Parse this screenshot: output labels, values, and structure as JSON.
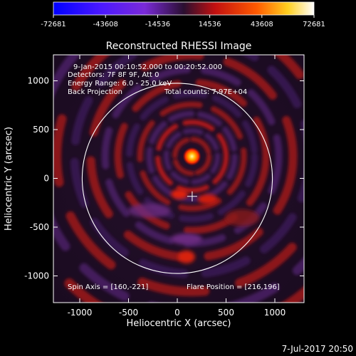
{
  "chart_data": {
    "type": "heatmap",
    "title": "Reconstructed RHESSI Image",
    "xlabel": "Heliocentric X (arcsec)",
    "ylabel": "Heliocentric Y (arcsec)",
    "xlim": [
      -1300,
      1300
    ],
    "ylim": [
      -1300,
      1300
    ],
    "x_ticks": [
      -1000,
      -500,
      0,
      500,
      1000
    ],
    "y_ticks": [
      -1000,
      -500,
      0,
      500,
      1000
    ],
    "colorbar": {
      "min": -72681,
      "max": 72681,
      "tick_labels": [
        "-72681",
        "-43608",
        "-14536",
        "14536",
        "43608",
        "72681"
      ],
      "tick_values": [
        -72681,
        -43608,
        -14536,
        14536,
        43608,
        72681
      ]
    },
    "annotations": [
      "9-Jan-2015 00:10:52.000 to 00:20:52.000",
      "Detectors: 7F 8F 9F, Att 0",
      "Energy Range: 6.0 - 25.0 keV",
      "Back Projection",
      "Total counts: 7.97E+04"
    ],
    "spin_axis_label": "Spin Axis = [160,-221]",
    "flare_position_label": "Flare Position = [216,196]",
    "spin_axis": [
      160,
      -221
    ],
    "flare_position": [
      216,
      196
    ],
    "solar_disk_radius": 975,
    "timestamp": "7-Jul-2017 20:50"
  }
}
